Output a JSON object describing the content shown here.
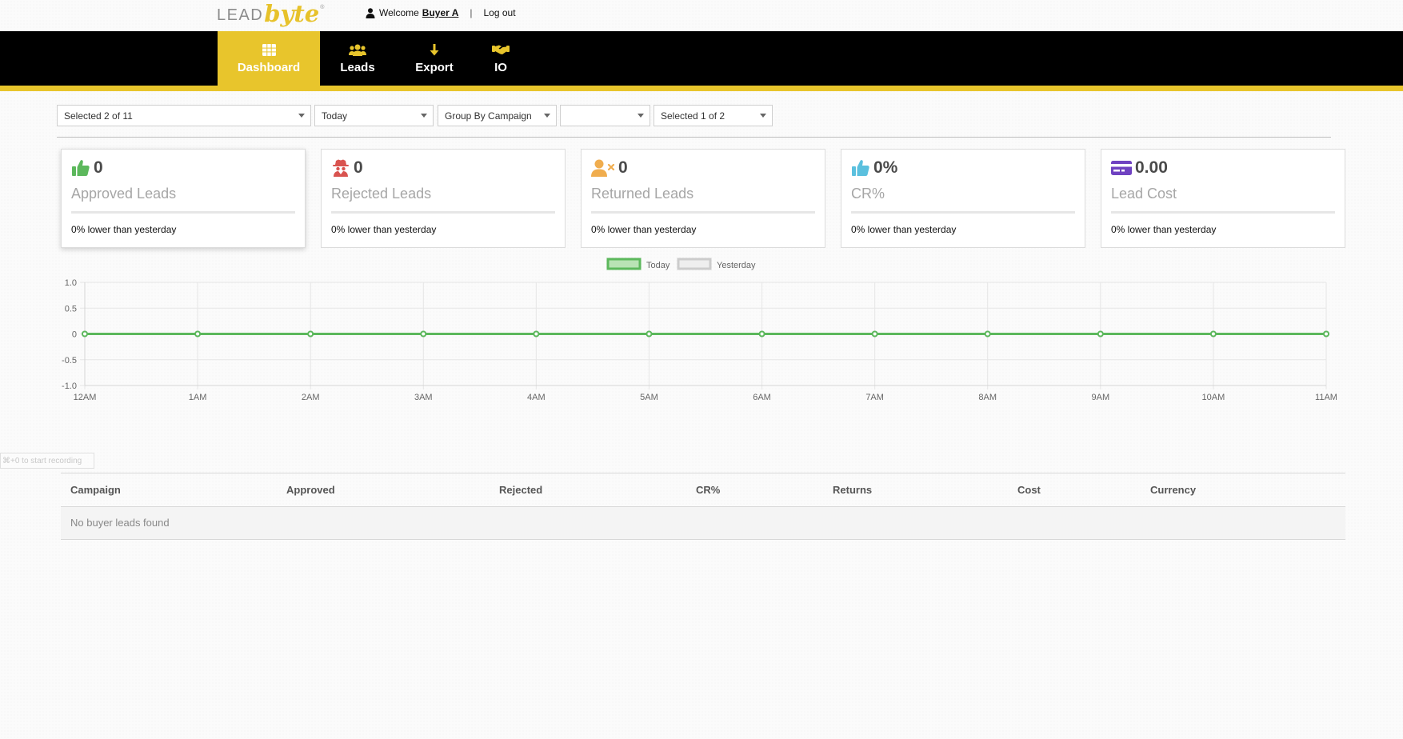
{
  "header": {
    "logo_lead": "LEAD",
    "logo_byte": "byte",
    "logo_tm": "®",
    "welcome": "Welcome",
    "user_name": "Buyer A",
    "separator": "|",
    "logout": "Log out"
  },
  "nav": {
    "items": [
      {
        "label": "Dashboard",
        "icon": "grid-icon",
        "active": true
      },
      {
        "label": "Leads",
        "icon": "users-icon",
        "active": false
      },
      {
        "label": "Export",
        "icon": "arrow-down-icon",
        "active": false
      },
      {
        "label": "IO",
        "icon": "handshake-icon",
        "active": false
      }
    ],
    "accent": "#e8c52c"
  },
  "filters": [
    {
      "value": "Selected 2 of 11"
    },
    {
      "value": "Today"
    },
    {
      "value": "Group By Campaign"
    },
    {
      "value": ""
    },
    {
      "value": "Selected 1 of 2"
    }
  ],
  "stats": [
    {
      "value": "0",
      "label": "Approved Leads",
      "note": "0% lower than yesterday",
      "icon": "thumbs-up-icon",
      "color": "#5cb85c"
    },
    {
      "value": "0",
      "label": "Rejected Leads",
      "note": "0% lower than yesterday",
      "icon": "spy-icon",
      "color": "#d9534f"
    },
    {
      "value": "0",
      "label": "Returned Leads",
      "note": "0% lower than yesterday",
      "icon": "user-times-icon",
      "color": "#f0ad4e"
    },
    {
      "value": "0%",
      "label": "CR%",
      "note": "0% lower than yesterday",
      "icon": "thumbs-up-icon",
      "color": "#5bc0de"
    },
    {
      "value": "0.00",
      "label": "Lead Cost",
      "note": "0% lower than yesterday",
      "icon": "credit-card-icon",
      "color": "#6f42c1"
    }
  ],
  "chart_data": {
    "type": "line",
    "x": [
      "12AM",
      "1AM",
      "2AM",
      "3AM",
      "4AM",
      "5AM",
      "6AM",
      "7AM",
      "8AM",
      "9AM",
      "10AM",
      "11AM"
    ],
    "series": [
      {
        "name": "Today",
        "values": [
          0,
          0,
          0,
          0,
          0,
          0,
          0,
          0,
          0,
          0,
          0,
          0
        ],
        "color": "#5cb85c"
      },
      {
        "name": "Yesterday",
        "values": [
          0,
          0,
          0,
          0,
          0,
          0,
          0,
          0,
          0,
          0,
          0,
          0
        ],
        "color": "#cccccc"
      }
    ],
    "yticks": [
      "1.0",
      "0.5",
      "0",
      "-0.5",
      "-1.0"
    ],
    "ylim": [
      -1,
      1
    ],
    "grid": true,
    "legend": "top-center"
  },
  "recording_hint": "⌘+0 to start recording",
  "table": {
    "columns": [
      "Campaign",
      "Approved",
      "Rejected",
      "CR%",
      "Returns",
      "Cost",
      "Currency"
    ],
    "empty_text": "No buyer leads found"
  }
}
